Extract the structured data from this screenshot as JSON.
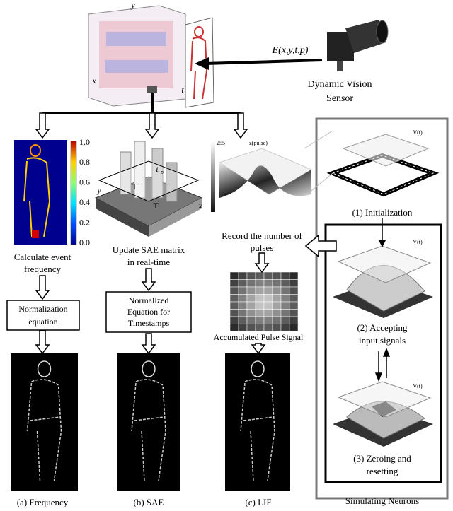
{
  "top": {
    "cube_axes": {
      "y": "y",
      "x": "x",
      "t": "t"
    },
    "event_label": "E(x,y,t,p)",
    "sensor_label": [
      "Dynamic Vision",
      "Sensor"
    ]
  },
  "frequency": {
    "colorbar_ticks": [
      "1.0",
      "0.8",
      "0.6",
      "0.4",
      "0.2",
      "0.0"
    ],
    "step_label": [
      "Calculate event",
      "frequency"
    ],
    "box_label": [
      "Normalization",
      "equation"
    ],
    "caption": "(a) Frequency"
  },
  "sae": {
    "plot_labels": {
      "tp": "t",
      "tp_sub": "p",
      "t1": "T",
      "t2": "T",
      "y": "y",
      "x": "x"
    },
    "step_label": [
      "Update SAE matrix",
      "in real-time"
    ],
    "box_label": [
      "Normalized",
      "Equation for",
      "Timestamps"
    ],
    "caption": "(b) SAE"
  },
  "lif": {
    "z_axis": "z(pulse)",
    "z_max": "255",
    "step_label": [
      "Record the number of",
      "pulses"
    ],
    "grid_label": "Accumulated Pulse Signal",
    "caption": "(c) LIF"
  },
  "neurons": {
    "axis_label": "V(t)",
    "steps": [
      [
        "(1) Initialization"
      ],
      [
        "(2) Accepting",
        "input signals"
      ],
      [
        "(3) Zeroing and",
        "resetting"
      ]
    ],
    "caption": "Simulating Neurons"
  }
}
